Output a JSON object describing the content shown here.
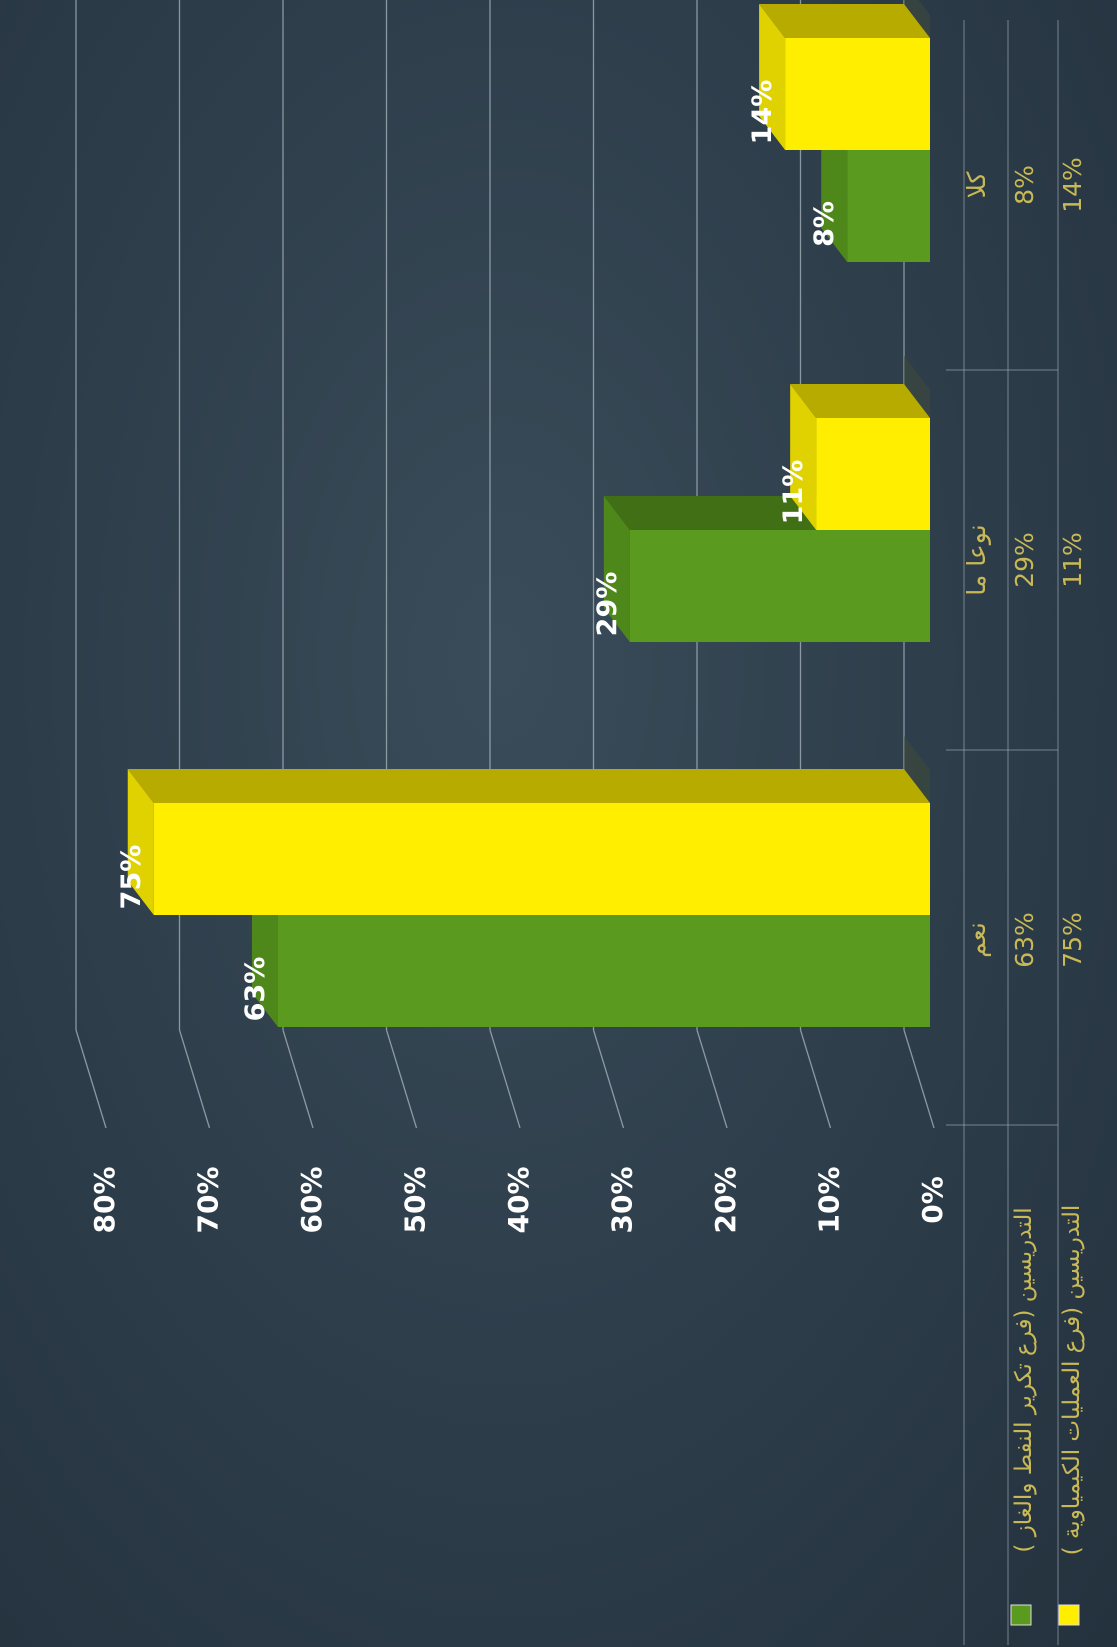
{
  "chart_data": {
    "type": "bar",
    "categories": [
      "نعم",
      "نوعا ما",
      "كلا"
    ],
    "series": [
      {
        "name": "التدريسين (فرع تكرير النفط والغاز )",
        "values": [
          63,
          29,
          8
        ],
        "labels": [
          "63%",
          "29%",
          "8%"
        ],
        "color": "#5a9a1e"
      },
      {
        "name": "التدريسين (فرع العمليات الكيمياوية )",
        "values": [
          75,
          11,
          14
        ],
        "labels": [
          "75%",
          "11%",
          "14%"
        ],
        "color": "#ffee00"
      }
    ],
    "ylim": [
      0,
      80
    ],
    "yticks": [
      "0%",
      "10%",
      "20%",
      "30%",
      "40%",
      "50%",
      "60%",
      "70%",
      "80%"
    ],
    "grid": true,
    "legend": "data-table",
    "orientation": "rotated-90-clockwise"
  }
}
